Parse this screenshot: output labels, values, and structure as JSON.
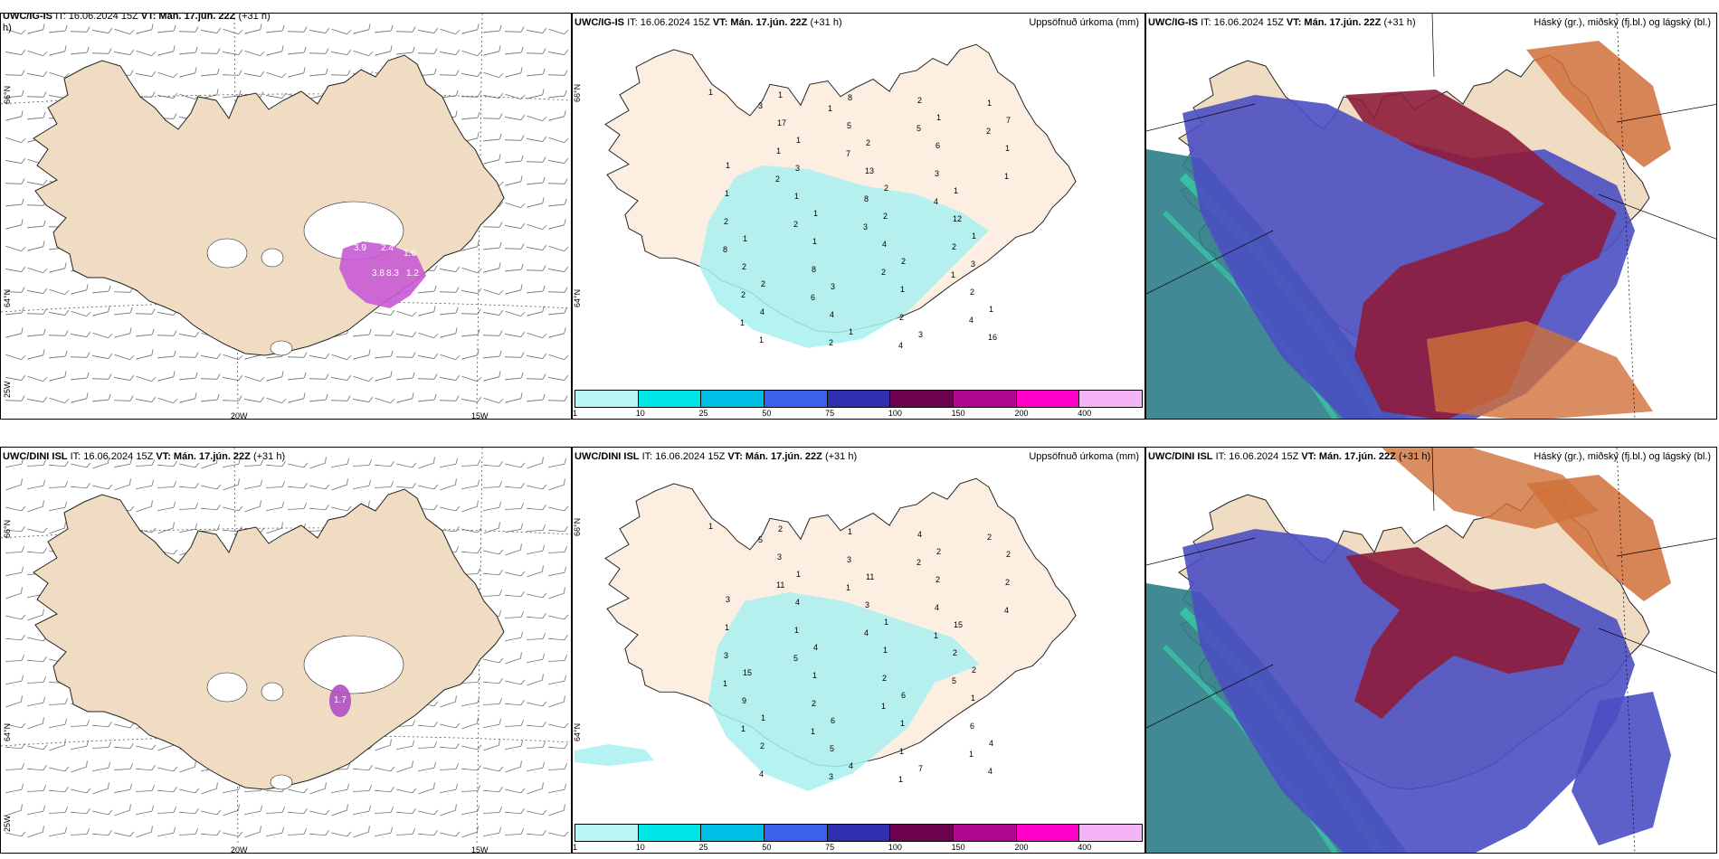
{
  "colors": {
    "land": "#efdcc3",
    "land_light": "#fcefe1",
    "cyan": "#a8f0f0",
    "wind_barb": "#6e6e6e",
    "coast": "#222222",
    "ocean_teal": "#2b7c8a",
    "blue": "#4b4fc2",
    "maroon": "#8e1c3c",
    "orange": "#d0703a"
  },
  "rows": [
    {
      "model_label": "UWC/IG-IS",
      "left_header_extra": "h)",
      "it_label": "IT: 16.06.2024 15Z",
      "vt_label": "VT: Mán. 17.jún. 22Z",
      "lead": "(+31 h)"
    },
    {
      "model_label": "UWC/DINI ISL",
      "left_header_extra": "",
      "it_label": "IT: 16.06.2024 15Z",
      "vt_label": "VT: Mán. 17.jún. 22Z",
      "lead": "(+31 h)"
    }
  ],
  "precip_title": "Uppsöfnuð úrkoma (mm)",
  "cloud_title": "Háský (gr.), miðský (fj.bl.) og lágský (bl.)",
  "axis_labels": {
    "lat66": "66°N",
    "lat64": "64°N",
    "lon20": "20W",
    "lon15": "15W",
    "corner": "25W"
  },
  "colorbar": {
    "ticks": [
      "1",
      "10",
      "25",
      "50",
      "75",
      "100",
      "150",
      "200",
      "400"
    ],
    "colors": [
      "#b8f6f6",
      "#00e5e5",
      "#00bfe6",
      "#3a62e8",
      "#2e2eae",
      "#6e0050",
      "#b0088e",
      "#ff00c8",
      "#f5b4f5"
    ]
  },
  "precip_values_top": [
    "1",
    "1",
    "2",
    "1",
    "2",
    "1",
    "1",
    "1",
    "1",
    "2",
    "1",
    "1",
    "2",
    "1",
    "1",
    "3",
    "3",
    "7",
    "3",
    "2",
    "3",
    "4",
    "8",
    "6",
    "1",
    "1",
    "1",
    "16",
    "17",
    "13",
    "12",
    "2",
    "4",
    "2",
    "1",
    "1",
    "4",
    "2",
    "1",
    "5",
    "3",
    "2",
    "8",
    "2",
    "1",
    "1",
    "8",
    "2",
    "2",
    "2",
    "5",
    "1",
    "2",
    "2",
    "4",
    "3",
    "7",
    "4",
    "8",
    "6",
    "4",
    "2",
    "2",
    "3",
    "1",
    "1",
    "1"
  ],
  "precip_values_bottom": [
    "1",
    "1",
    "1",
    "2",
    "1",
    "4",
    "2",
    "3",
    "4",
    "6",
    "4",
    "2",
    "11",
    "15",
    "15",
    "6",
    "7",
    "2",
    "4",
    "1",
    "1",
    "2",
    "1",
    "2",
    "1",
    "1",
    "1",
    "4",
    "3",
    "3",
    "2",
    "9",
    "5",
    "4",
    "2",
    "1",
    "2",
    "6",
    "4",
    "3",
    "4",
    "3",
    "2",
    "1",
    "2",
    "11",
    "4",
    "5",
    "1",
    "3",
    "2",
    "4",
    "5",
    "1",
    "1",
    "5",
    "1",
    "1",
    "1",
    "1",
    "1"
  ],
  "wind_contour_labels_top": [
    "3.9",
    "2.4",
    "1.6",
    "3.8",
    "8.3",
    "1.2"
  ],
  "wind_contour_labels_bottom": [
    "1.7"
  ]
}
